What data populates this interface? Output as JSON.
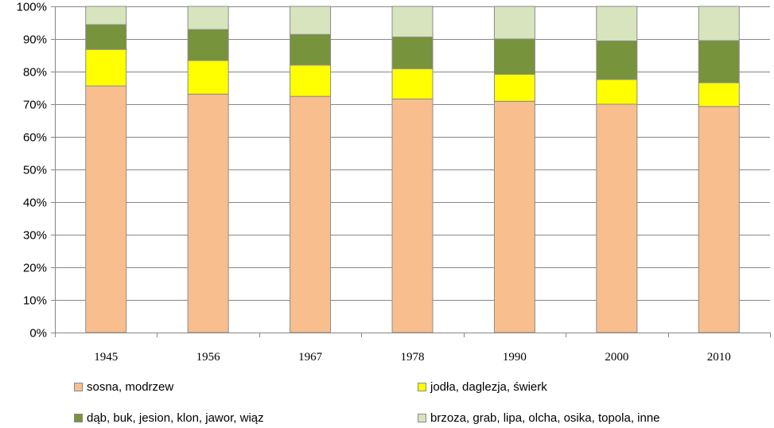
{
  "chart_data": {
    "type": "bar",
    "stacked": true,
    "title": "",
    "xlabel": "",
    "ylabel": "",
    "categories": [
      "1945",
      "1956",
      "1967",
      "1978",
      "1990",
      "2000",
      "2010"
    ],
    "ylim": [
      0,
      100
    ],
    "yticks": [
      "0%",
      "10%",
      "20%",
      "30%",
      "40%",
      "50%",
      "60%",
      "70%",
      "80%",
      "90%",
      "100%"
    ],
    "grid": true,
    "legend_position": "bottom",
    "series": [
      {
        "name": "sosna, modrzew",
        "color": "#F9BE8E",
        "values": [
          75.6,
          73.1,
          72.4,
          71.6,
          70.9,
          70.0,
          69.3
        ]
      },
      {
        "name": "jodła, daglezja, świerk",
        "color": "#FFFF00",
        "values": [
          11.2,
          10.3,
          9.6,
          9.3,
          8.3,
          7.6,
          7.3
        ]
      },
      {
        "name": "dąb, buk, jesion, klon, jawor, wiąz",
        "color": "#77933C",
        "values": [
          7.6,
          9.5,
          9.4,
          9.7,
          10.8,
          11.8,
          12.9
        ]
      },
      {
        "name": "brzoza, grab, lipa, olcha, osika, topola, inne",
        "color": "#D7E4BD",
        "values": [
          5.6,
          7.1,
          8.6,
          9.4,
          10.0,
          10.6,
          10.5
        ]
      }
    ]
  }
}
